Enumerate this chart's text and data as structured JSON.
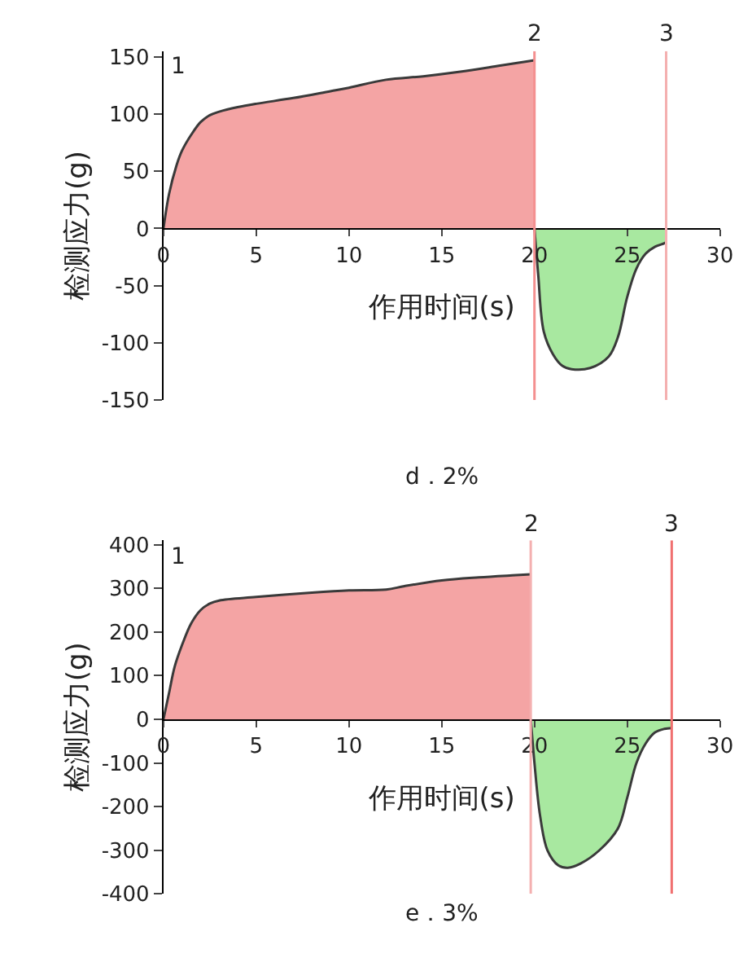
{
  "chart_data": [
    {
      "type": "area",
      "title": "d．2%",
      "xlabel": "作用时间(s)",
      "ylabel": "检测应力(g)",
      "xlim": [
        0,
        30
      ],
      "xticks": [
        0,
        5,
        10,
        15,
        20,
        25,
        30
      ],
      "ylim": [
        -150,
        155
      ],
      "yticks": [
        -150,
        -100,
        -50,
        0,
        50,
        100,
        150
      ],
      "series": [
        {
          "color": "#f4a4a4",
          "x": [
            0,
            0.3,
            0.7,
            1,
            1.5,
            2,
            2.5,
            3,
            4,
            5,
            7,
            9,
            10,
            12,
            14,
            16,
            18,
            20
          ],
          "values": [
            0,
            30,
            55,
            68,
            82,
            93,
            99,
            102,
            106,
            109,
            114,
            120,
            123,
            130,
            133,
            137,
            142,
            147
          ]
        },
        {
          "color": "#a8e8a0",
          "x": [
            20,
            20.2,
            20.5,
            21,
            21.5,
            22,
            23,
            24,
            24.5,
            25,
            25.5,
            26,
            26.5,
            27,
            27.1
          ],
          "values": [
            0,
            -40,
            -90,
            -110,
            -120,
            -123,
            -122,
            -112,
            -95,
            -60,
            -35,
            -22,
            -16,
            -13,
            -12
          ]
        }
      ],
      "ref_lines": [
        {
          "axis": "x",
          "value": 20,
          "color": "#f49090"
        },
        {
          "axis": "x",
          "value": 27.1,
          "color": "#f4b0b0"
        }
      ],
      "annotations": [
        "1",
        "2",
        "3"
      ]
    },
    {
      "type": "area",
      "title": "e．3%",
      "xlabel": "作用时间(s)",
      "ylabel": "检测应力(g)",
      "xlim": [
        0,
        30
      ],
      "xticks": [
        0,
        5,
        10,
        15,
        20,
        25,
        30
      ],
      "ylim": [
        -400,
        410
      ],
      "yticks": [
        -400,
        -300,
        -200,
        -100,
        0,
        100,
        200,
        300,
        400
      ],
      "series": [
        {
          "color": "#f4a4a4",
          "x": [
            0,
            0.3,
            0.6,
            1,
            1.5,
            2,
            2.5,
            3,
            5,
            8,
            10,
            12,
            13,
            15,
            17,
            19,
            19.8
          ],
          "values": [
            0,
            60,
            120,
            170,
            220,
            250,
            265,
            272,
            280,
            290,
            295,
            297,
            305,
            318,
            325,
            330,
            332
          ]
        },
        {
          "color": "#a8e8a0",
          "x": [
            19.8,
            20,
            20.3,
            20.7,
            21.3,
            21.8,
            22.5,
            23.5,
            24.5,
            25,
            25.5,
            26,
            26.5,
            27,
            27.4
          ],
          "values": [
            0,
            -100,
            -220,
            -300,
            -335,
            -340,
            -330,
            -300,
            -250,
            -180,
            -100,
            -55,
            -30,
            -22,
            -20
          ]
        }
      ],
      "ref_lines": [
        {
          "axis": "x",
          "value": 19.8,
          "color": "#f4b0b0"
        },
        {
          "axis": "x",
          "value": 27.4,
          "color": "#f07070"
        }
      ],
      "annotations": [
        "1",
        "2",
        "3"
      ]
    }
  ]
}
